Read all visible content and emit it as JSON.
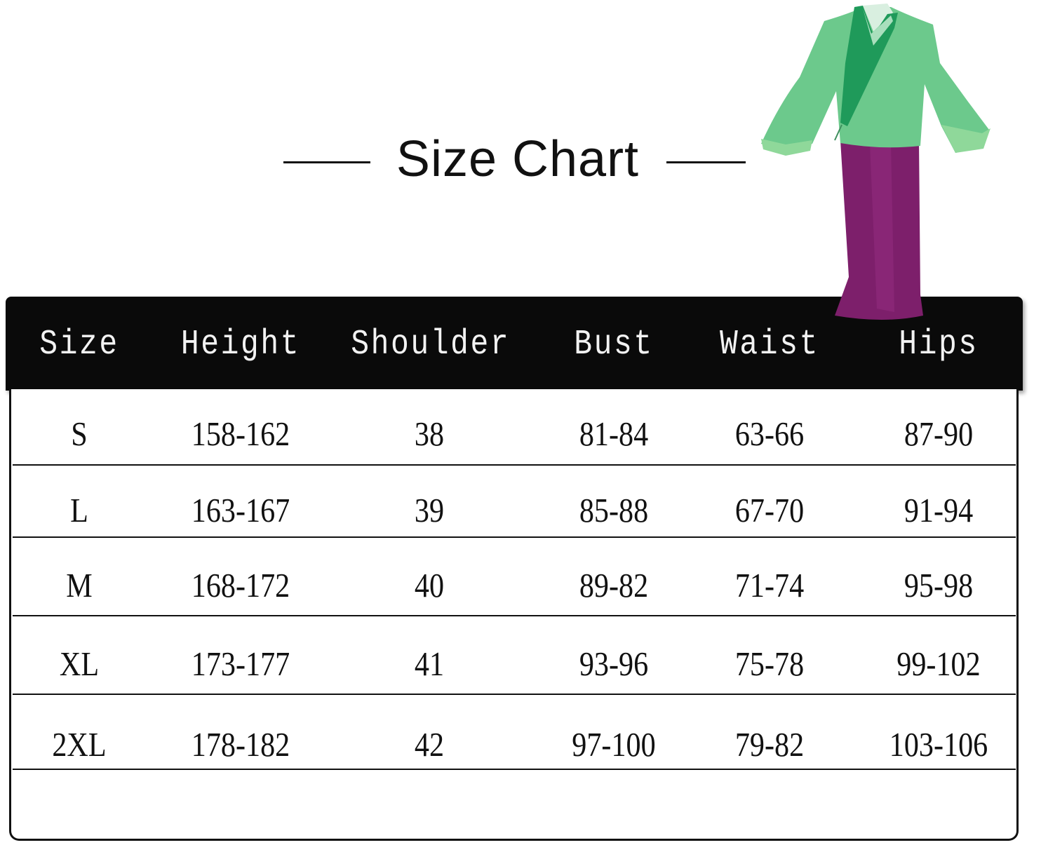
{
  "title": "Size Chart",
  "chart_data": {
    "type": "table",
    "title": "Size Chart",
    "columns": [
      "Size",
      "Height",
      "Shoulder",
      "Bust",
      "Waist",
      "Hips"
    ],
    "rows": [
      [
        "S",
        "158-162",
        "38",
        "81-84",
        "63-66",
        "87-90"
      ],
      [
        "L",
        "163-167",
        "39",
        "85-88",
        "67-70",
        "91-94"
      ],
      [
        "M",
        "168-172",
        "40",
        "89-82",
        "71-74",
        "95-98"
      ],
      [
        "XL",
        "173-177",
        "41",
        "93-96",
        "75-78",
        "99-102"
      ],
      [
        "2XL",
        "178-182",
        "42",
        "97-100",
        "79-82",
        "103-106"
      ]
    ]
  },
  "colors": {
    "header_bg": "#0a0a0a",
    "top_green": "#6cc98c",
    "collar_green": "#1f9a5a",
    "skirt_purple": "#7d1f6b"
  },
  "image": "green-top-purple-skirt-costume"
}
